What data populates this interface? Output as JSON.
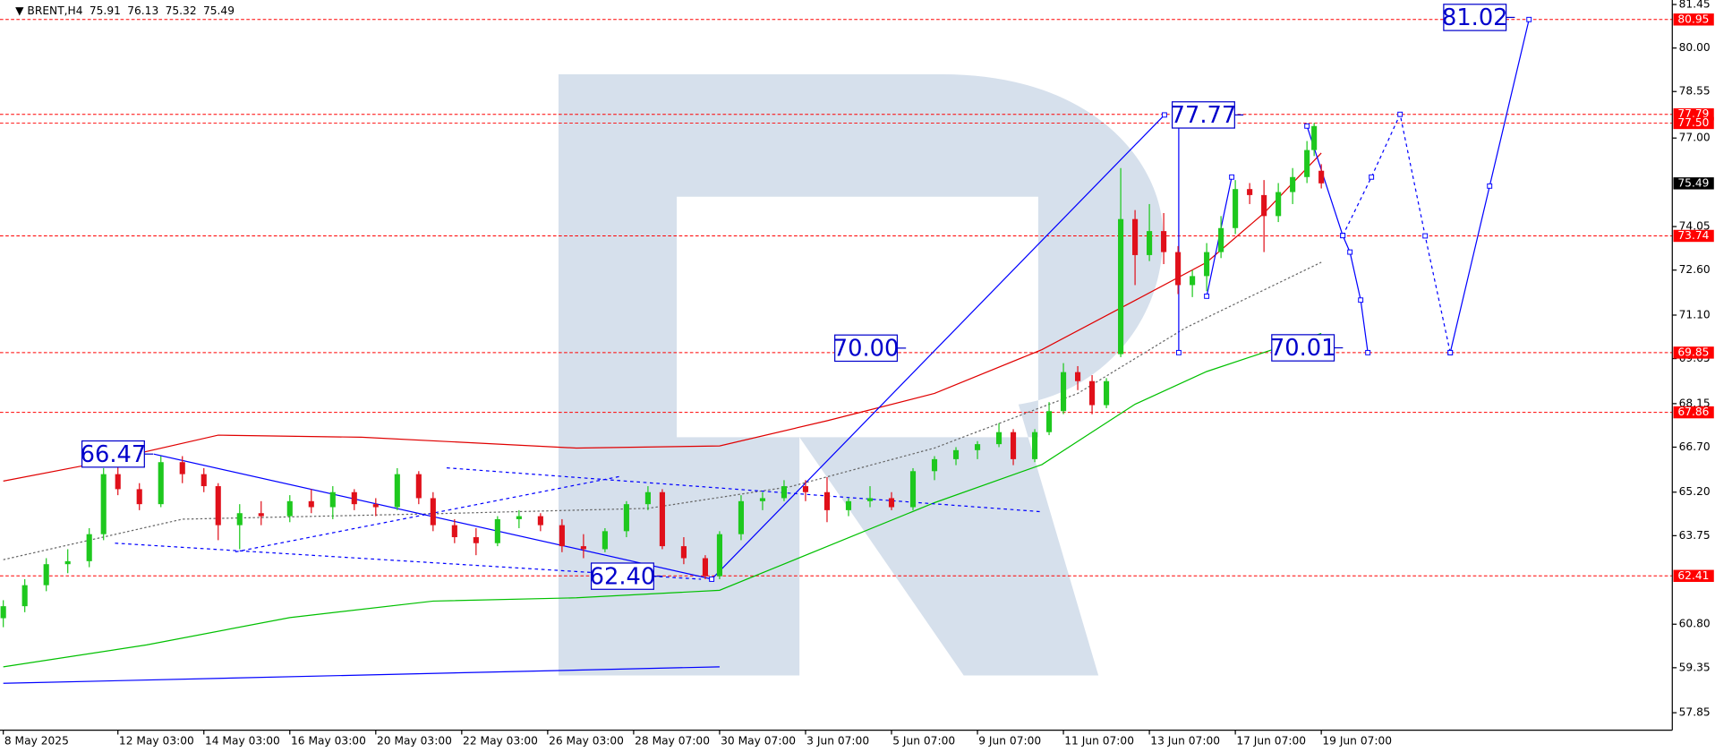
{
  "chart_data": {
    "type": "candlestick",
    "title": "BRENT,H4",
    "up_color": "#1ec81e",
    "down_color": "#e0101a",
    "xlim": [
      0,
      233
    ],
    "ylim": [
      57.27,
      81.6
    ],
    "xticks": [
      {
        "value": 0,
        "label": "8 May 2025"
      },
      {
        "value": 16,
        "label": "12 May 03:00"
      },
      {
        "value": 28,
        "label": "14 May 03:00"
      },
      {
        "value": 40,
        "label": "16 May 03:00"
      },
      {
        "value": 52,
        "label": "20 May 03:00"
      },
      {
        "value": 64,
        "label": "22 May 03:00"
      },
      {
        "value": 76,
        "label": "26 May 03:00"
      },
      {
        "value": 88,
        "label": "28 May 07:00"
      },
      {
        "value": 100,
        "label": "30 May 07:00"
      },
      {
        "value": 112,
        "label": "3 Jun 07:00"
      },
      {
        "value": 124,
        "label": "5 Jun 07:00"
      },
      {
        "value": 136,
        "label": "9 Jun 07:00"
      },
      {
        "value": 148,
        "label": "11 Jun 07:00"
      },
      {
        "value": 160,
        "label": "13 Jun 07:00"
      },
      {
        "value": 172,
        "label": "17 Jun 07:00"
      },
      {
        "value": 184,
        "label": "19 Jun 07:00"
      }
    ],
    "yticks": [
      81.45,
      {
        "value": 80,
        "label": "80.00"
      },
      78.55,
      {
        "value": 77,
        "label": "77.00"
      },
      74.05,
      {
        "value": 72.6,
        "label": "72.60"
      },
      {
        "value": 71.1,
        "label": "71.10"
      },
      69.65,
      68.15,
      {
        "value": 66.7,
        "label": "66.70"
      },
      {
        "value": 65.2,
        "label": "65.20"
      },
      63.75,
      {
        "value": 60.8,
        "label": "60.80"
      },
      59.35,
      57.85
    ],
    "x": [
      0,
      3,
      6,
      9,
      12,
      14,
      16,
      19,
      22,
      25,
      28,
      30,
      33,
      36,
      40,
      43,
      46,
      49,
      52,
      55,
      58,
      60,
      63,
      66,
      69,
      72,
      75,
      78,
      81,
      84,
      87,
      90,
      92,
      95,
      98,
      100,
      103,
      106,
      109,
      112,
      115,
      118,
      121,
      124,
      127,
      130,
      133,
      136,
      139,
      141,
      144,
      146,
      148,
      150,
      152,
      154,
      156,
      158,
      160,
      162,
      164,
      166,
      168,
      170,
      172,
      174,
      176,
      178,
      180,
      182,
      183,
      184
    ],
    "open": [
      61.0,
      61.4,
      62.1,
      62.8,
      62.9,
      63.8,
      65.8,
      65.3,
      64.8,
      66.2,
      65.8,
      65.4,
      64.1,
      64.5,
      64.4,
      64.9,
      64.7,
      65.2,
      64.8,
      64.7,
      65.8,
      65.0,
      64.1,
      63.7,
      63.5,
      64.3,
      64.4,
      64.1,
      63.4,
      63.3,
      63.9,
      64.8,
      65.2,
      63.4,
      63.0,
      62.4,
      63.8,
      64.9,
      65.0,
      65.4,
      65.2,
      64.6,
      64.9,
      65.0,
      64.7,
      65.9,
      66.3,
      66.6,
      66.8,
      67.2,
      66.3,
      67.2,
      67.9,
      69.2,
      68.9,
      68.1,
      69.8,
      74.3,
      73.1,
      73.9,
      73.2,
      72.1,
      72.4,
      73.2,
      74.0,
      75.3,
      75.1,
      74.4,
      75.2,
      75.7,
      76.6,
      75.91
    ],
    "high": [
      61.6,
      62.3,
      63.0,
      63.3,
      64.0,
      66.0,
      66.5,
      65.5,
      66.4,
      66.4,
      66.0,
      65.5,
      64.8,
      64.9,
      65.1,
      65.3,
      65.4,
      65.3,
      65.0,
      66.0,
      65.9,
      65.2,
      64.3,
      64.0,
      64.4,
      64.6,
      64.5,
      64.3,
      63.8,
      64.0,
      64.9,
      65.4,
      65.3,
      63.7,
      63.1,
      63.9,
      65.1,
      65.2,
      65.6,
      65.6,
      65.7,
      65.0,
      65.4,
      65.2,
      66.0,
      66.4,
      66.7,
      66.9,
      67.5,
      67.3,
      67.3,
      68.2,
      69.5,
      69.4,
      69.1,
      69.0,
      76.0,
      74.6,
      74.8,
      74.5,
      73.4,
      72.6,
      73.5,
      74.4,
      75.6,
      75.5,
      75.6,
      75.5,
      76.0,
      76.9,
      77.5,
      76.13
    ],
    "low": [
      60.7,
      61.2,
      61.9,
      62.5,
      62.7,
      63.6,
      65.1,
      64.6,
      64.7,
      65.5,
      65.2,
      63.6,
      63.3,
      64.1,
      64.2,
      64.5,
      64.3,
      64.6,
      64.4,
      64.6,
      64.8,
      63.9,
      63.5,
      63.1,
      63.4,
      64.0,
      63.9,
      63.2,
      63.0,
      63.2,
      63.7,
      64.6,
      63.3,
      62.8,
      62.3,
      62.3,
      63.6,
      64.6,
      64.9,
      64.9,
      64.2,
      64.4,
      64.7,
      64.6,
      64.6,
      65.6,
      66.1,
      66.3,
      66.7,
      66.1,
      66.2,
      67.1,
      67.8,
      68.6,
      67.8,
      68.0,
      69.7,
      72.1,
      72.9,
      72.8,
      71.8,
      71.7,
      71.9,
      73.0,
      73.8,
      74.8,
      73.2,
      74.2,
      74.8,
      75.5,
      76.4,
      75.32
    ],
    "close": [
      61.4,
      62.1,
      62.8,
      62.9,
      63.8,
      65.8,
      65.3,
      64.8,
      66.2,
      65.8,
      65.4,
      64.1,
      64.5,
      64.4,
      64.9,
      64.7,
      65.2,
      64.8,
      64.7,
      65.8,
      65.0,
      64.1,
      63.7,
      63.5,
      64.3,
      64.4,
      64.1,
      63.4,
      63.3,
      63.9,
      64.8,
      65.2,
      63.4,
      63.0,
      62.4,
      63.8,
      64.9,
      65.0,
      65.4,
      65.2,
      64.6,
      64.9,
      65.0,
      64.7,
      65.9,
      66.3,
      66.6,
      66.8,
      67.2,
      66.3,
      67.2,
      67.9,
      69.2,
      68.9,
      68.1,
      68.9,
      74.3,
      73.1,
      73.9,
      73.2,
      72.1,
      72.4,
      73.2,
      74.0,
      75.3,
      75.1,
      74.4,
      75.2,
      75.7,
      76.6,
      77.4,
      75.49
    ],
    "levels": {
      "color": "#ff0000",
      "values": [
        80.95,
        77.79,
        77.5,
        73.74,
        69.85,
        67.86,
        62.41
      ],
      "value_labels": [
        "80.95",
        "77.79",
        "77.50",
        "73.74",
        "69.85",
        "67.86",
        "62.41"
      ]
    },
    "annotations": {
      "color": "#0000cc",
      "x": [
        19.7,
        90.8,
        124.8,
        171.9,
        185.8,
        209.8
      ],
      "values": [
        66.47,
        62.4,
        70.0,
        77.77,
        70.01,
        81.02
      ],
      "value_labels": [
        "66.47",
        "62.40",
        "70.00",
        "77.77",
        "70.01",
        "81.02"
      ]
    },
    "lines": [
      {
        "color": "#e00000",
        "style": "solid",
        "x": [
          0,
          12,
          30,
          50,
          80,
          100,
          115,
          130,
          145,
          158,
          168,
          176,
          184
        ],
        "values": [
          65.57,
          66.12,
          67.1,
          67.03,
          66.67,
          66.74,
          67.58,
          68.49,
          69.95,
          71.59,
          72.86,
          74.5,
          76.5
        ]
      },
      {
        "color": "#00c000",
        "style": "solid",
        "x": [
          0,
          20,
          40,
          60,
          80,
          100,
          115,
          130,
          145,
          158,
          168,
          184
        ],
        "values": [
          59.38,
          60.11,
          61.02,
          61.57,
          61.68,
          61.93,
          63.39,
          64.85,
          66.12,
          68.13,
          69.22,
          70.49
        ]
      },
      {
        "color": "#666666",
        "style": "dotted",
        "x": [
          0,
          25,
          60,
          90,
          110,
          130,
          150,
          165,
          184
        ],
        "values": [
          62.95,
          64.3,
          64.48,
          64.66,
          65.39,
          66.67,
          68.49,
          70.67,
          72.86
        ]
      },
      {
        "color": "#0000ff",
        "style": "solid",
        "x": [
          21,
          99
        ],
        "values": [
          66.47,
          62.3
        ]
      },
      {
        "color": "#0000ff",
        "style": "dashed",
        "x": [
          15.6,
          97.4
        ],
        "values": [
          63.5,
          62.3
        ]
      },
      {
        "color": "#0000ff",
        "style": "dashed",
        "x": [
          32.4,
          86
        ],
        "values": [
          63.21,
          65.72
        ]
      },
      {
        "color": "#0000ff",
        "style": "dashed",
        "x": [
          61.9,
          144.8
        ],
        "values": [
          66.01,
          64.55
        ]
      },
      {
        "color": "#0000ff",
        "style": "solid",
        "x": [
          0,
          100
        ],
        "values": [
          58.83,
          59.38
        ]
      },
      {
        "color": "#0000ff",
        "style": "solid",
        "markers": true,
        "x": [
          98.9,
          162.1
        ],
        "values": [
          62.3,
          77.77
        ]
      },
      {
        "color": "#0000ff",
        "style": "solid",
        "markers": true,
        "x": [
          164.1,
          164.1
        ],
        "values": [
          77.77,
          69.85
        ]
      },
      {
        "color": "#0000ff",
        "style": "solid",
        "markers": true,
        "x": [
          168,
          171.5
        ],
        "values": [
          71.73,
          75.7
        ]
      },
      {
        "color": "#0000ff",
        "style": "solid",
        "markers": true,
        "x": [
          182,
          187,
          188,
          189.5,
          190.5
        ],
        "values": [
          77.4,
          73.75,
          73.2,
          71.6,
          69.85
        ]
      },
      {
        "color": "#0000ff",
        "style": "dashed",
        "markers": true,
        "x": [
          187,
          191,
          195,
          198.5,
          202
        ],
        "values": [
          73.75,
          75.7,
          77.79,
          73.74,
          69.85
        ]
      },
      {
        "color": "#0000ff",
        "style": "solid",
        "markers": true,
        "x": [
          202,
          207.5,
          213
        ],
        "values": [
          69.85,
          75.4,
          80.95
        ]
      }
    ]
  }
}
